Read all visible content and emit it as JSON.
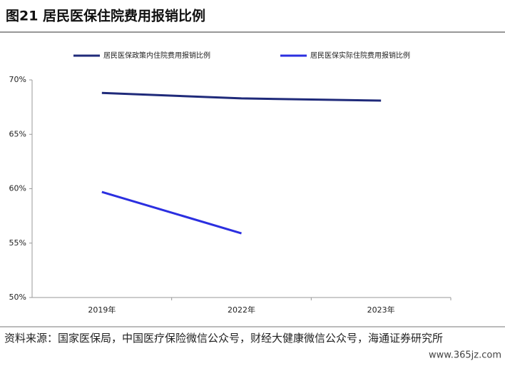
{
  "chart_data": {
    "type": "line",
    "title": "图21 居民医保住院费用报销比例",
    "categories": [
      "2019年",
      "2022年",
      "2023年"
    ],
    "series": [
      {
        "name": "居民医保政策内住院费用报销比例",
        "color": "#1f2a7a",
        "values": [
          68.8,
          68.3,
          68.1
        ]
      },
      {
        "name": "居民医保实际住院费用报销比例",
        "color": "#2b2fe0",
        "values": [
          59.7,
          55.9,
          null
        ]
      }
    ],
    "ylim": [
      50,
      70
    ],
    "yticks": [
      {
        "value": 50,
        "label": "50%"
      },
      {
        "value": 55,
        "label": "55%"
      },
      {
        "value": 60,
        "label": "60%"
      },
      {
        "value": 65,
        "label": "65%"
      },
      {
        "value": 70,
        "label": "70%"
      }
    ],
    "grid": false,
    "legend": "top"
  },
  "source": "资料来源：国家医保局，中国医疗保险微信公众号，财经大健康微信公众号，海通证券研究所",
  "watermark": "www.365jz.com"
}
